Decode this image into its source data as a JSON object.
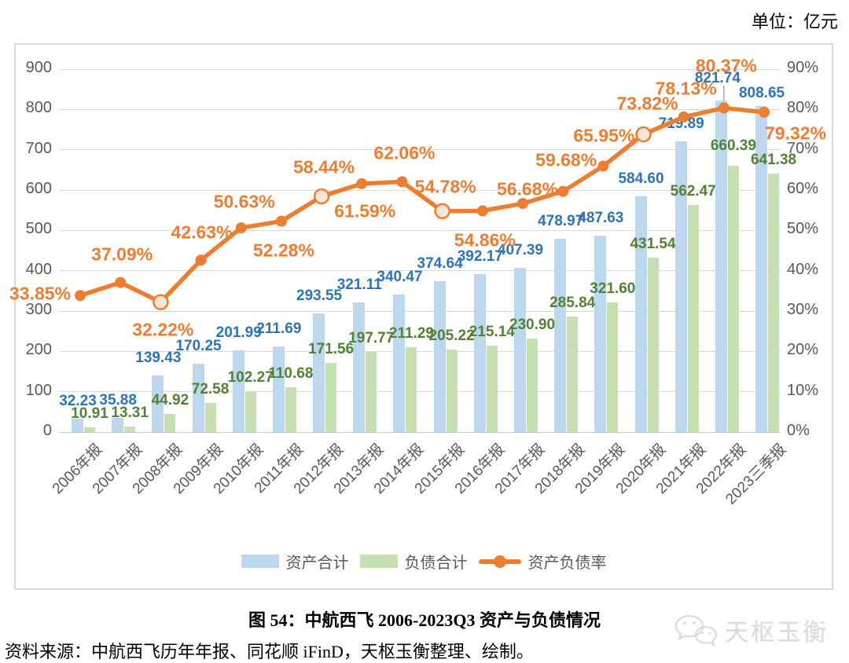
{
  "unit_label": "单位：亿元",
  "caption": "图 54：中航西飞 2006-2023Q3 资产与负债情况",
  "source": "资料来源：中航西飞历年年报、同花顺 iFinD，天枢玉衡整理、绘制。",
  "watermark_text": "天枢玉衡",
  "legend": {
    "assets": "资产合计",
    "liabilities": "负债合计",
    "ratio": "资产负债率"
  },
  "colors": {
    "asset_bar": "#BDD7EE",
    "liability_bar": "#C6E0B4",
    "ratio_line": "#ED7D31",
    "asset_label": "#2E74B5",
    "liability_label": "#538135",
    "axis_text": "#595959",
    "gridline": "#D9D9D9",
    "open_marker_fill": "#FBE5D6",
    "leader_line": "#A6A6A6"
  },
  "chart_data": {
    "type": "bar",
    "subtype": "combo-bar-line",
    "categories": [
      "2006年报",
      "2007年报",
      "2008年报",
      "2009年报",
      "2010年报",
      "2011年报",
      "2012年报",
      "2013年报",
      "2014年报",
      "2015年报",
      "2016年报",
      "2017年报",
      "2018年报",
      "2019年报",
      "2020年报",
      "2021年报",
      "2022年报",
      "2023三季报"
    ],
    "series": [
      {
        "name": "资产合计",
        "type": "bar",
        "axis": "left",
        "values": [
          32.23,
          35.88,
          139.43,
          170.25,
          201.99,
          211.69,
          293.55,
          321.11,
          340.47,
          374.64,
          392.17,
          407.39,
          478.97,
          487.63,
          584.6,
          719.89,
          821.74,
          808.65
        ],
        "labels": [
          "32.23",
          "35.88",
          "139.43",
          "170.25",
          "201.99",
          "211.69",
          "293.55",
          "321.11",
          "340.47",
          "374.64",
          "392.17",
          "407.39",
          "478.97",
          "487.63",
          "584.60",
          "719.89",
          "821.74",
          "808.65"
        ]
      },
      {
        "name": "负债合计",
        "type": "bar",
        "axis": "left",
        "values": [
          10.91,
          13.31,
          44.92,
          72.58,
          102.27,
          110.68,
          171.56,
          197.77,
          211.29,
          205.22,
          215.14,
          230.9,
          285.84,
          321.6,
          431.54,
          562.47,
          660.39,
          641.38
        ],
        "labels": [
          "10.91",
          "13.31",
          "44.92",
          "72.58",
          "102.27",
          "110.68",
          "171.56",
          "197.77",
          "211.29",
          "205.22",
          "215.14",
          "230.90",
          "285.84",
          "321.60",
          "431.54",
          "562.47",
          "660.39",
          "641.38"
        ]
      },
      {
        "name": "资产负债率",
        "type": "line",
        "axis": "right",
        "values": [
          33.85,
          37.09,
          32.22,
          42.63,
          50.63,
          52.28,
          58.44,
          61.59,
          62.06,
          54.78,
          54.86,
          56.68,
          59.68,
          65.95,
          73.82,
          78.13,
          80.37,
          79.32
        ],
        "labels": [
          "33.85%",
          "37.09%",
          "32.22%",
          "42.63%",
          "50.63%",
          "52.28%",
          "58.44%",
          "61.59%",
          "62.06%",
          "54.78%",
          "54.86%",
          "56.68%",
          "59.68%",
          "65.95%",
          "73.82%",
          "78.13%",
          "80.37%",
          "79.32%"
        ],
        "open_marker_indices": [
          2,
          6,
          9,
          14
        ],
        "label_offsets": [
          [
            -51,
            -2
          ],
          [
            2,
            -36
          ],
          [
            3,
            35
          ],
          [
            1,
            -35
          ],
          [
            4,
            -33
          ],
          [
            3,
            37
          ],
          [
            3,
            -37
          ],
          [
            4,
            35
          ],
          [
            3,
            -36
          ],
          [
            4,
            -31
          ],
          [
            3,
            38
          ],
          [
            6,
            -18
          ],
          [
            4,
            -40
          ],
          [
            1,
            -38
          ],
          [
            5,
            -39
          ],
          [
            3,
            -36
          ],
          [
            3,
            -53
          ],
          [
            40,
            27
          ]
        ]
      }
    ],
    "left_axis": {
      "min": 0,
      "max": 900,
      "step": 100,
      "tick_labels": [
        "0",
        "100",
        "200",
        "300",
        "400",
        "500",
        "600",
        "700",
        "800",
        "900"
      ]
    },
    "right_axis": {
      "min": 0,
      "max": 90,
      "step": 10,
      "suffix": "%",
      "tick_labels": [
        "0%",
        "10%",
        "20%",
        "30%",
        "40%",
        "50%",
        "60%",
        "70%",
        "80%",
        "90%"
      ]
    },
    "grid": true,
    "legend_position": "bottom",
    "asset_label_dy": -22,
    "liability_label_dy": -17,
    "label_overrides": {
      "asset_16": {
        "dx": -5,
        "dy": -28,
        "leader": true
      },
      "asset_17": {
        "dy": -16
      },
      "liability_16": {
        "dy": -25
      }
    }
  }
}
